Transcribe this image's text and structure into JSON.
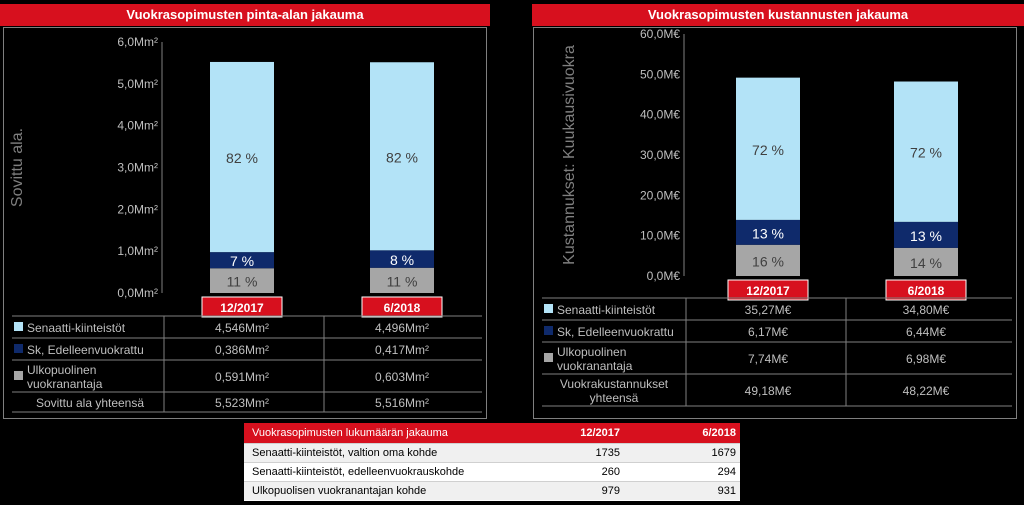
{
  "chart_data": [
    {
      "type": "bar",
      "stacked": true,
      "title": "Vuokrasopimusten pinta-alan jakauma",
      "ylabel": "Sovittu ala.",
      "ylim": [
        0,
        6
      ],
      "y_ticks": [
        "0,0Mm²",
        "1,0Mm²",
        "2,0Mm²",
        "3,0Mm²",
        "4,0Mm²",
        "5,0Mm²",
        "6,0Mm²"
      ],
      "categories": [
        "12/2017",
        "6/2018"
      ],
      "series": [
        {
          "name": "Ulkopuolinen vuokranantaja",
          "color": "#a6a6a6",
          "values": [
            0.591,
            0.603
          ],
          "labels": [
            "11 %",
            "11 %"
          ],
          "table_values": [
            "0,591Mm²",
            "0,603Mm²"
          ]
        },
        {
          "name": "Sk, Edelleenvuokrattu",
          "color": "#0f2a6b",
          "values": [
            0.386,
            0.417
          ],
          "labels": [
            "7 %",
            "8 %"
          ],
          "table_values": [
            "0,386Mm²",
            "0,417Mm²"
          ]
        },
        {
          "name": "Senaatti-kiinteistöt",
          "color": "#b3e3f7",
          "values": [
            4.546,
            4.496
          ],
          "labels": [
            "82 %",
            "82 %"
          ],
          "table_values": [
            "4,546Mm²",
            "4,496Mm²"
          ]
        }
      ],
      "total_row": {
        "name": "Sovittu ala yhteensä",
        "values": [
          "5,523Mm²",
          "5,516Mm²"
        ]
      }
    },
    {
      "type": "bar",
      "stacked": true,
      "title": "Vuokrasopimusten kustannusten jakauma",
      "ylabel": "Kustannukset: Kuukausivuokra",
      "ylim": [
        0,
        60
      ],
      "y_ticks": [
        "0,0M€",
        "10,0M€",
        "20,0M€",
        "30,0M€",
        "40,0M€",
        "50,0M€",
        "60,0M€"
      ],
      "categories": [
        "12/2017",
        "6/2018"
      ],
      "series": [
        {
          "name": "Ulkopuolinen vuokranantaja",
          "color": "#a6a6a6",
          "values": [
            7.74,
            6.98
          ],
          "labels": [
            "16 %",
            "14 %"
          ],
          "table_values": [
            "7,74M€",
            "6,98M€"
          ]
        },
        {
          "name": "Sk, Edelleenvuokrattu",
          "color": "#0f2a6b",
          "values": [
            6.17,
            6.44
          ],
          "labels": [
            "13 %",
            "13 %"
          ],
          "table_values": [
            "6,17M€",
            "6,44M€"
          ]
        },
        {
          "name": "Senaatti-kiinteistöt",
          "color": "#b3e3f7",
          "values": [
            35.27,
            34.8
          ],
          "labels": [
            "72 %",
            "72 %"
          ],
          "table_values": [
            "35,27M€",
            "34,80M€"
          ]
        }
      ],
      "total_row": {
        "name": "Vuokrakustannukset yhteensä",
        "values": [
          "49,18M€",
          "48,22M€"
        ]
      }
    },
    {
      "type": "table",
      "title": "Vuokrasopimusten lukumäärän jakauma",
      "columns": [
        "12/2017",
        "6/2018"
      ],
      "rows": [
        {
          "label": "Senaatti-kiinteistöt, valtion oma kohde",
          "values": [
            "1735",
            "1679"
          ]
        },
        {
          "label": "Senaatti-kiinteistöt, edelleenvuokrauskohde",
          "values": [
            "260",
            "294"
          ]
        },
        {
          "label": "Ulkopuolisen vuokranantajan kohde",
          "values": [
            "979",
            "931"
          ]
        }
      ]
    }
  ]
}
